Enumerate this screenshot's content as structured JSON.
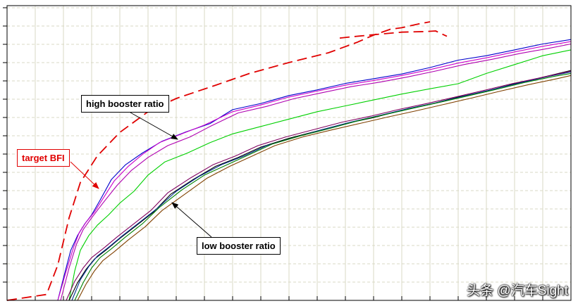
{
  "chart_data": {
    "type": "line",
    "xlim": [
      0,
      100
    ],
    "ylim": [
      0,
      100
    ],
    "grid": true,
    "annotations": [
      {
        "id": "high",
        "text": "high booster ratio"
      },
      {
        "id": "target",
        "text": "target BFI"
      },
      {
        "id": "low",
        "text": "low booster ratio"
      }
    ],
    "series": [
      {
        "role": "target",
        "color": "#e00000",
        "dash": true,
        "points": [
          [
            0,
            0
          ],
          [
            7,
            2
          ],
          [
            9,
            12
          ],
          [
            11,
            28
          ],
          [
            13,
            40
          ],
          [
            16,
            49
          ],
          [
            20,
            57
          ],
          [
            25,
            64
          ],
          [
            30,
            68.5
          ],
          [
            37,
            73
          ],
          [
            43,
            77
          ],
          [
            50,
            80.7
          ],
          [
            57,
            84
          ],
          [
            62,
            87.5
          ],
          [
            65,
            90
          ],
          [
            68,
            92
          ],
          [
            70,
            92.5
          ],
          [
            73,
            93.8
          ],
          [
            75,
            94.5
          ]
        ]
      },
      {
        "role": "target-tail",
        "color": "#e00000",
        "dash": true,
        "points": [
          [
            59,
            89
          ],
          [
            62,
            89.6
          ],
          [
            66,
            90.3
          ],
          [
            70,
            91
          ],
          [
            74,
            91.2
          ],
          [
            76,
            91.4
          ],
          [
            78,
            89.6
          ]
        ]
      },
      {
        "role": "high",
        "color": "#0000cc",
        "points": [
          [
            9,
            0
          ],
          [
            10.2,
            9
          ],
          [
            11.3,
            17
          ],
          [
            12.5,
            22
          ],
          [
            13.8,
            26
          ],
          [
            15,
            29
          ],
          [
            16.5,
            34
          ],
          [
            18.5,
            41
          ],
          [
            21,
            46
          ],
          [
            24,
            50
          ],
          [
            27.5,
            54
          ],
          [
            31.5,
            57
          ],
          [
            36,
            60
          ],
          [
            40,
            64.7
          ],
          [
            45,
            66.8
          ],
          [
            50,
            69.5
          ],
          [
            55,
            71.4
          ],
          [
            60,
            73.6
          ],
          [
            65,
            75.2
          ],
          [
            70,
            76.8
          ],
          [
            75,
            79
          ],
          [
            80,
            81.5
          ],
          [
            85,
            83
          ],
          [
            90,
            85
          ],
          [
            95,
            87
          ],
          [
            100,
            88.5
          ]
        ]
      },
      {
        "role": "high",
        "color": "#cc00cc",
        "points": [
          [
            9,
            0
          ],
          [
            10.5,
            10
          ],
          [
            11.8,
            18
          ],
          [
            12.8,
            23
          ],
          [
            14,
            26.5
          ],
          [
            15.5,
            30
          ],
          [
            17,
            34.5
          ],
          [
            19,
            40.5
          ],
          [
            21.5,
            45.5
          ],
          [
            24,
            49.5
          ],
          [
            27,
            53.5
          ],
          [
            31,
            56.5
          ],
          [
            35,
            59.5
          ],
          [
            40,
            64
          ],
          [
            45,
            66.3
          ],
          [
            50,
            69
          ],
          [
            55,
            71
          ],
          [
            60,
            73
          ],
          [
            65,
            74.6
          ],
          [
            70,
            76.3
          ],
          [
            75,
            78.3
          ],
          [
            80,
            80.5
          ],
          [
            85,
            82.3
          ],
          [
            90,
            84.3
          ],
          [
            95,
            86.2
          ],
          [
            100,
            87.8
          ]
        ]
      },
      {
        "role": "high",
        "color": "#b000b0",
        "points": [
          [
            9.5,
            0
          ],
          [
            11,
            11
          ],
          [
            12.3,
            19
          ],
          [
            13.5,
            24
          ],
          [
            15,
            28
          ],
          [
            17,
            33
          ],
          [
            19.5,
            39
          ],
          [
            22,
            44
          ],
          [
            25,
            48.5
          ],
          [
            28.5,
            52.5
          ],
          [
            32.5,
            55.5
          ],
          [
            36,
            59
          ],
          [
            41,
            63.6
          ],
          [
            46,
            65.8
          ],
          [
            51,
            68.5
          ],
          [
            56,
            70.5
          ],
          [
            61,
            72.5
          ],
          [
            66,
            74
          ],
          [
            71,
            75.8
          ],
          [
            76,
            77.8
          ],
          [
            81,
            80
          ],
          [
            86,
            81.8
          ],
          [
            91,
            83.8
          ],
          [
            96,
            85.5
          ],
          [
            100,
            87
          ]
        ]
      },
      {
        "role": "high",
        "color": "#00d000",
        "points": [
          [
            11,
            0
          ],
          [
            12,
            10
          ],
          [
            13,
            17
          ],
          [
            14.5,
            22
          ],
          [
            16,
            25.5
          ],
          [
            18,
            29
          ],
          [
            20,
            33
          ],
          [
            22.5,
            37
          ],
          [
            25,
            42.5
          ],
          [
            28,
            47
          ],
          [
            32,
            50
          ],
          [
            36,
            53.5
          ],
          [
            40,
            56.5
          ],
          [
            45,
            59
          ],
          [
            50,
            61.5
          ],
          [
            55,
            64
          ],
          [
            60,
            66
          ],
          [
            65,
            68
          ],
          [
            70,
            70
          ],
          [
            75,
            71.8
          ],
          [
            80,
            73.5
          ],
          [
            85,
            77
          ],
          [
            90,
            80
          ],
          [
            95,
            83
          ],
          [
            100,
            85
          ]
        ]
      },
      {
        "role": "low",
        "color": "#000000",
        "points": [
          [
            11,
            0
          ],
          [
            12.5,
            6
          ],
          [
            14,
            10.5
          ],
          [
            15.5,
            14
          ],
          [
            17.5,
            17
          ],
          [
            20,
            21
          ],
          [
            23,
            25.5
          ],
          [
            26,
            30
          ],
          [
            29,
            36
          ],
          [
            33,
            41
          ],
          [
            37,
            45.5
          ],
          [
            41,
            48.5
          ],
          [
            45,
            52
          ],
          [
            50,
            55
          ],
          [
            55,
            57.5
          ],
          [
            60,
            60
          ],
          [
            65,
            62
          ],
          [
            70,
            64.5
          ],
          [
            75,
            66.5
          ],
          [
            80,
            69
          ],
          [
            85,
            71
          ],
          [
            90,
            73.5
          ],
          [
            95,
            75.7
          ],
          [
            100,
            78
          ]
        ]
      },
      {
        "role": "low",
        "color": "#003090",
        "points": [
          [
            11.5,
            0
          ],
          [
            13,
            7
          ],
          [
            14.5,
            11.5
          ],
          [
            16,
            15
          ],
          [
            18,
            18
          ],
          [
            20.5,
            22
          ],
          [
            23.5,
            26.5
          ],
          [
            26.5,
            31
          ],
          [
            30,
            37
          ],
          [
            34,
            42
          ],
          [
            38,
            46
          ],
          [
            42,
            49
          ],
          [
            46,
            52.5
          ],
          [
            51,
            55.3
          ],
          [
            56,
            58
          ],
          [
            61,
            60.5
          ],
          [
            66,
            62.7
          ],
          [
            71,
            65
          ],
          [
            76,
            67
          ],
          [
            81,
            69.3
          ],
          [
            86,
            71.5
          ],
          [
            91,
            73.8
          ],
          [
            96,
            76
          ],
          [
            100,
            77.5
          ]
        ]
      },
      {
        "role": "low",
        "color": "#008000",
        "points": [
          [
            12,
            0
          ],
          [
            13.5,
            6
          ],
          [
            15,
            11
          ],
          [
            16.5,
            14.5
          ],
          [
            18.5,
            17.5
          ],
          [
            21,
            21.5
          ],
          [
            24,
            26
          ],
          [
            27,
            31.5
          ],
          [
            31,
            37.5
          ],
          [
            35,
            42.5
          ],
          [
            39,
            46
          ],
          [
            43,
            49.5
          ],
          [
            47,
            53
          ],
          [
            52,
            55.8
          ],
          [
            57,
            58.2
          ],
          [
            62,
            60.8
          ],
          [
            67,
            63
          ],
          [
            72,
            65.2
          ],
          [
            77,
            67.3
          ],
          [
            82,
            69.5
          ],
          [
            87,
            71.7
          ],
          [
            92,
            74
          ],
          [
            97,
            76
          ],
          [
            100,
            77
          ]
        ]
      },
      {
        "role": "low",
        "color": "#800060",
        "points": [
          [
            10.5,
            0
          ],
          [
            12,
            6.5
          ],
          [
            13.5,
            11
          ],
          [
            15,
            14.5
          ],
          [
            17,
            17.5
          ],
          [
            19.5,
            21.5
          ],
          [
            22.5,
            26
          ],
          [
            25.5,
            30.5
          ],
          [
            28.5,
            36.5
          ],
          [
            32.5,
            41.5
          ],
          [
            36.5,
            46
          ],
          [
            40.5,
            49
          ],
          [
            44.5,
            52.5
          ],
          [
            49.5,
            55.5
          ],
          [
            54.5,
            58
          ],
          [
            59.5,
            60.5
          ],
          [
            64.5,
            62.5
          ],
          [
            69.5,
            64.8
          ],
          [
            74.5,
            66.8
          ],
          [
            79.5,
            69
          ],
          [
            84.5,
            71.2
          ],
          [
            89.5,
            73.5
          ],
          [
            94.5,
            75.5
          ],
          [
            100,
            77.8
          ]
        ]
      },
      {
        "role": "low",
        "color": "#804000",
        "points": [
          [
            12.5,
            0
          ],
          [
            14,
            5.5
          ],
          [
            15.5,
            10
          ],
          [
            17,
            13.5
          ],
          [
            19,
            16.5
          ],
          [
            21.5,
            20.5
          ],
          [
            24.5,
            25
          ],
          [
            27.5,
            30.5
          ],
          [
            31.5,
            36
          ],
          [
            35.5,
            41.5
          ],
          [
            39.5,
            45.5
          ],
          [
            43.5,
            49
          ],
          [
            47.5,
            52.5
          ],
          [
            52.5,
            55.5
          ],
          [
            57.5,
            57.8
          ],
          [
            62.5,
            60
          ],
          [
            67.5,
            62.2
          ],
          [
            72.5,
            64.3
          ],
          [
            77.5,
            66.5
          ],
          [
            82.5,
            68.7
          ],
          [
            87.5,
            71
          ],
          [
            92.5,
            73.2
          ],
          [
            97.5,
            75.2
          ],
          [
            100,
            76.3
          ]
        ]
      }
    ]
  },
  "watermark": "头条 @汽车Sight"
}
